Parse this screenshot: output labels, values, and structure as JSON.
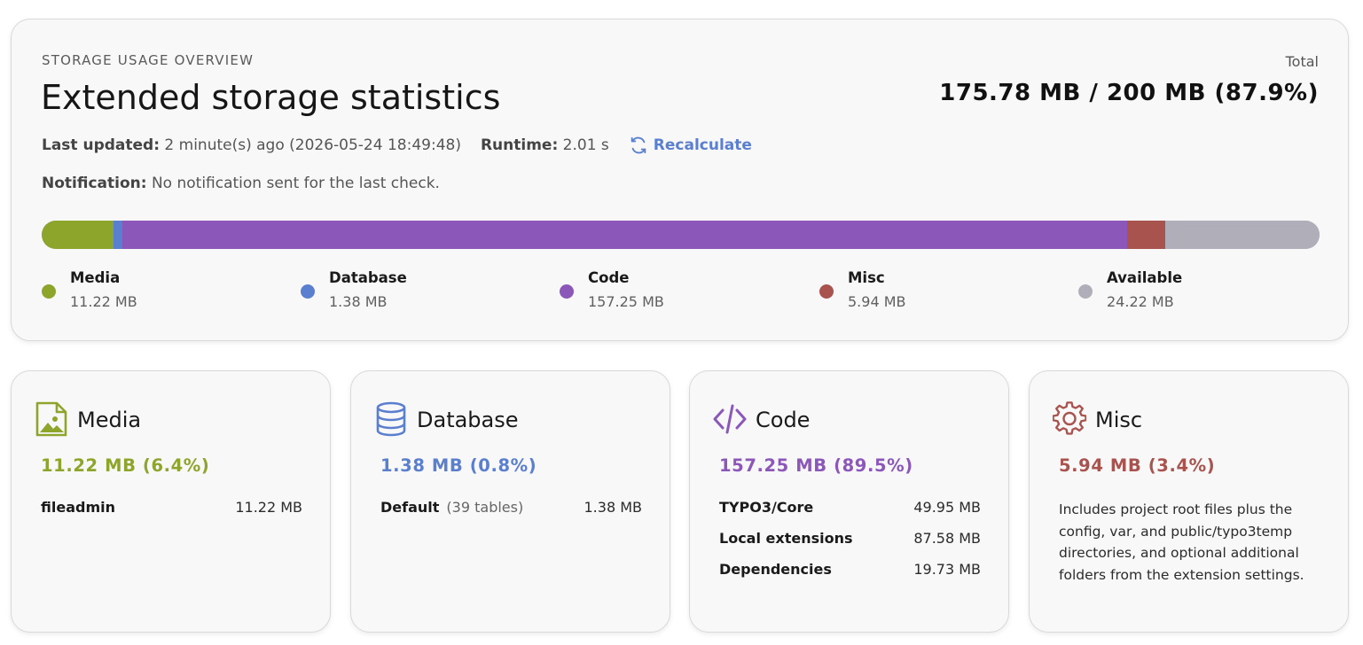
{
  "overview": {
    "eyebrow": "STORAGE USAGE OVERVIEW",
    "title": "Extended storage statistics",
    "total_label": "Total",
    "total_value": "175.78 MB / 200 MB (87.9%)",
    "last_updated_label": "Last updated:",
    "last_updated_value": "2 minute(s) ago (2026-05-24 18:49:48)",
    "runtime_label": "Runtime:",
    "runtime_value": "2.01 s",
    "recalculate_label": "Recalculate",
    "notification_label": "Notification:",
    "notification_value": "No notification sent for the last check.",
    "usage_bar": {
      "total_mb": 200,
      "segments": [
        {
          "name": "Media",
          "mb": 11.22,
          "color": "#8ea52c"
        },
        {
          "name": "Database",
          "mb": 1.38,
          "color": "#5b7fcf"
        },
        {
          "name": "Code",
          "mb": 157.25,
          "color": "#8b57b8"
        },
        {
          "name": "Misc",
          "mb": 5.94,
          "color": "#a9534f"
        },
        {
          "name": "Available",
          "mb": 24.22,
          "color": "#b0afb9"
        }
      ]
    },
    "legend": [
      {
        "label": "Media",
        "value": "11.22 MB",
        "color": "#8ea52c"
      },
      {
        "label": "Database",
        "value": "1.38 MB",
        "color": "#5b7fcf"
      },
      {
        "label": "Code",
        "value": "157.25 MB",
        "color": "#8b57b8"
      },
      {
        "label": "Misc",
        "value": "5.94 MB",
        "color": "#a9534f"
      },
      {
        "label": "Available",
        "value": "24.22 MB",
        "color": "#b0afb9"
      }
    ]
  },
  "cards": {
    "media": {
      "icon": "image-file-icon",
      "title": "Media",
      "amount": "11.22 MB (6.4%)",
      "color": "#8ea52c",
      "rows": [
        {
          "key": "fileadmin",
          "value": "11.22 MB"
        }
      ]
    },
    "database": {
      "icon": "database-icon",
      "title": "Database",
      "amount": "1.38 MB (0.8%)",
      "color": "#5b7fcf",
      "rows": [
        {
          "key": "Default",
          "sub": "(39 tables)",
          "value": "1.38 MB"
        }
      ]
    },
    "code": {
      "icon": "code-icon",
      "title": "Code",
      "amount": "157.25 MB (89.5%)",
      "color": "#8b57b8",
      "rows": [
        {
          "key": "TYPO3/Core",
          "value": "49.95 MB"
        },
        {
          "key": "Local extensions",
          "value": "87.58 MB"
        },
        {
          "key": "Dependencies",
          "value": "19.73 MB"
        }
      ]
    },
    "misc": {
      "icon": "gear-icon",
      "title": "Misc",
      "amount": "5.94 MB (3.4%)",
      "color": "#a9534f",
      "description": "Includes project root files plus the config, var, and public/typo3temp directories, and optional additional folders from the extension settings."
    }
  }
}
